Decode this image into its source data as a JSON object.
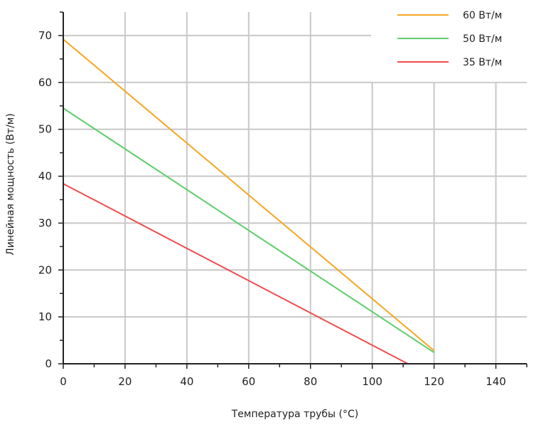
{
  "chart_data": {
    "type": "line",
    "xlabel": "Температура трубы (°C)",
    "ylabel": "Линейная мощность (Вт/м)",
    "xlim": [
      0,
      150
    ],
    "ylim": [
      0,
      75
    ],
    "x_ticks": [
      "0",
      "20",
      "40",
      "60",
      "80",
      "100",
      "120",
      "140"
    ],
    "y_ticks": [
      "0",
      "10",
      "20",
      "30",
      "40",
      "50",
      "60",
      "70"
    ],
    "grid": true,
    "legend_position": "top-right",
    "series": [
      {
        "name": "60 Вт/м",
        "color": "#f5a623",
        "points": [
          [
            0,
            69.2
          ],
          [
            120,
            2.8
          ]
        ]
      },
      {
        "name": "50 Вт/м",
        "color": "#5cce6c",
        "points": [
          [
            0,
            54.5
          ],
          [
            120,
            2.4
          ]
        ]
      },
      {
        "name": "35 Вт/м",
        "color": "#f04c4c",
        "points": [
          [
            0,
            38.4
          ],
          [
            111.5,
            0
          ]
        ]
      }
    ]
  }
}
